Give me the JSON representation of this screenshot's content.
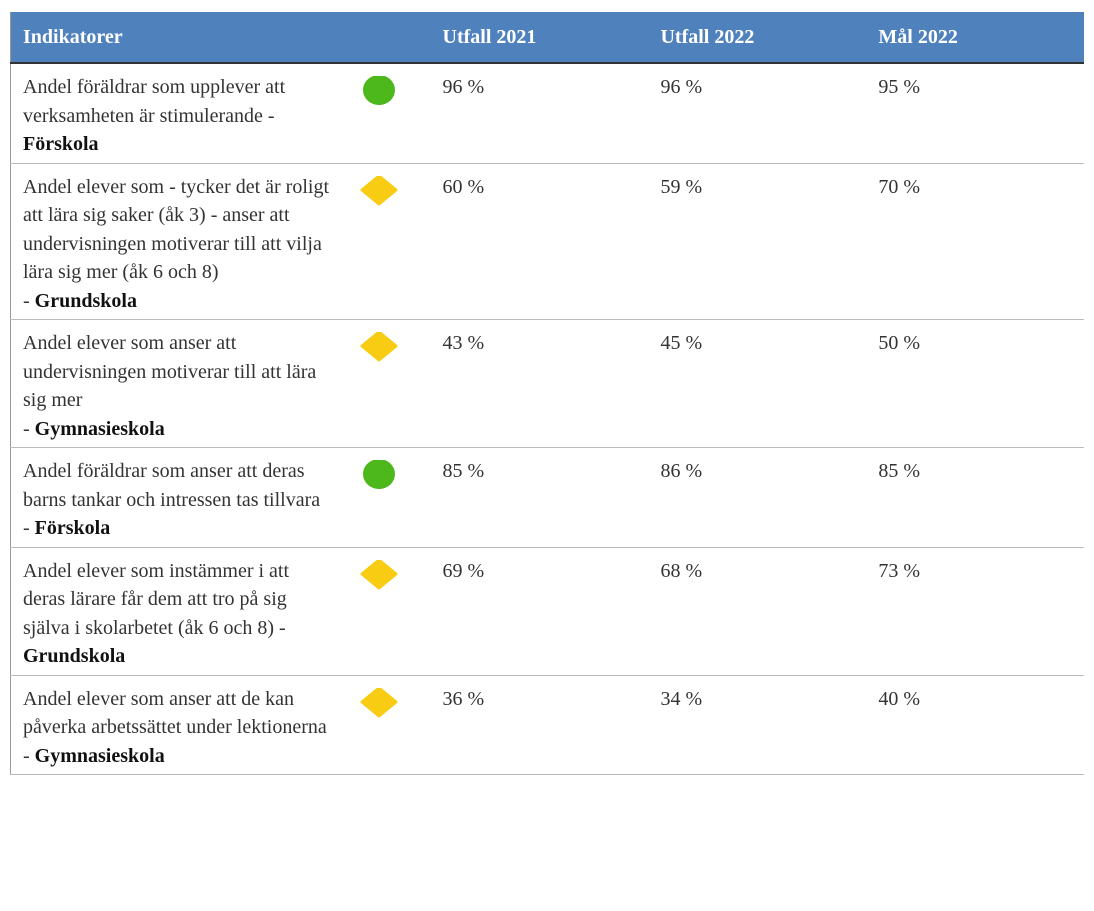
{
  "table": {
    "headers": [
      "Indikatorer",
      "Utfall 2021",
      "Utfall 2022",
      "Mål 2022"
    ],
    "rows": [
      {
        "text": "Andel föräldrar som upplever att verksamheten är stimulerande - ",
        "school": "Förskola",
        "status": {
          "shape": "circle",
          "color": "#4cb81c"
        },
        "values": [
          "96 %",
          "96 %",
          "95 %"
        ]
      },
      {
        "text": "Andel elever som - tycker det är roligt att lära sig saker (åk 3) - anser att undervisningen motiverar till att vilja lära sig mer (åk 6 och 8)\n- ",
        "school": "Grundskola",
        "status": {
          "shape": "diamond",
          "color": "#f8cc13"
        },
        "values": [
          "60 %",
          "59 %",
          "70 %"
        ]
      },
      {
        "text": "Andel elever som anser att undervisningen motiverar till att lära sig mer\n- ",
        "school": "Gymnasieskola",
        "status": {
          "shape": "diamond",
          "color": "#f8cc13"
        },
        "values": [
          "43 %",
          "45 %",
          "50 %"
        ]
      },
      {
        "text": "Andel föräldrar som anser att deras barns tankar och intressen tas tillvara\n- ",
        "school": "Förskola",
        "status": {
          "shape": "circle",
          "color": "#4cb81c"
        },
        "values": [
          "85 %",
          "86 %",
          "85 %"
        ]
      },
      {
        "text": "Andel elever som instämmer i att deras lärare får dem att tro på sig själva i skolarbetet (åk 6 och 8) - ",
        "school": "Grundskola",
        "status": {
          "shape": "diamond",
          "color": "#f8cc13"
        },
        "values": [
          "69 %",
          "68 %",
          "73 %"
        ]
      },
      {
        "text": "Andel elever som anser att de kan påverka arbetssättet under lektionerna\n- ",
        "school": "Gymnasieskola",
        "status": {
          "shape": "diamond",
          "color": "#f8cc13"
        },
        "values": [
          "36 %",
          "34 %",
          "40 %"
        ]
      }
    ]
  }
}
